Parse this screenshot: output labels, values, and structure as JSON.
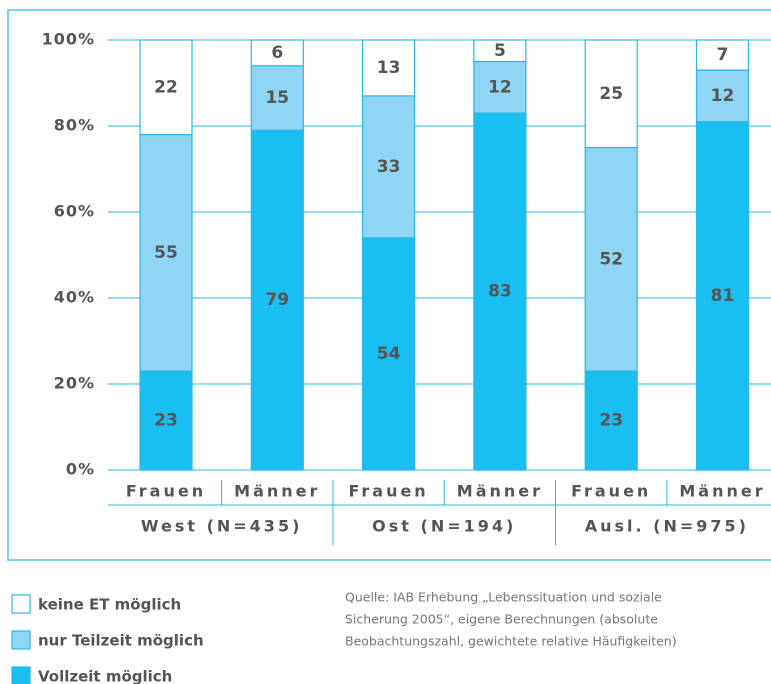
{
  "chart_data": {
    "type": "stacked_bar",
    "categories": [
      "Frauen",
      "Männer",
      "Frauen",
      "Männer",
      "Frauen",
      "Männer"
    ],
    "groups": [
      "West (N=435)",
      "Ost (N=194)",
      "Ausl. (N=975)"
    ],
    "series": [
      {
        "name": "Vollzeit möglich",
        "color": "#19bff0",
        "values": [
          23,
          79,
          54,
          83,
          23,
          81
        ]
      },
      {
        "name": "nur Teilzeit möglich",
        "color": "#8fd5f5",
        "values": [
          55,
          15,
          33,
          12,
          52,
          12
        ]
      },
      {
        "name": "keine ET möglich",
        "color": "#ffffff",
        "values": [
          22,
          6,
          13,
          5,
          25,
          7
        ]
      }
    ],
    "ylim": [
      0,
      100
    ],
    "yticks": [
      {
        "value": 0,
        "label": "0%"
      },
      {
        "value": 20,
        "label": "20%"
      },
      {
        "value": 40,
        "label": "40%"
      },
      {
        "value": 60,
        "label": "60%"
      },
      {
        "value": 80,
        "label": "80%"
      },
      {
        "value": 100,
        "label": "100%"
      }
    ],
    "grid": true,
    "source": [
      "Quelle: IAB Erhebung „Lebenssituation und soziale",
      "Sicherung 2005“, eigene Berechnungen (absolute",
      "Beobachtungszahl, gewichtete relative Häufigkeiten)"
    ]
  }
}
